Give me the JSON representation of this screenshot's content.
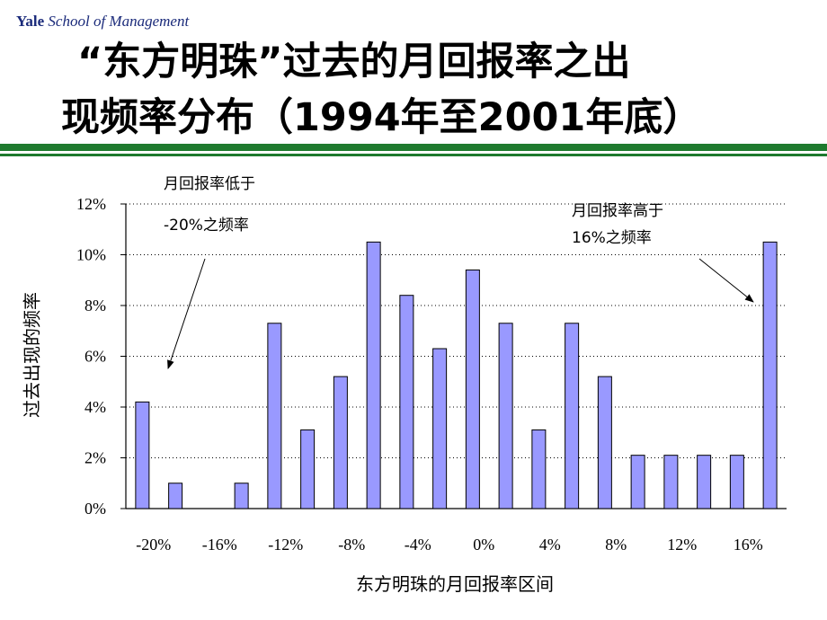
{
  "header": {
    "yale": "Yale",
    "school": "School of Management"
  },
  "title": {
    "line1": "“东方明珠”过去的月回报率之出",
    "line2": "现频率分布（1994年至2001年底）"
  },
  "annotations": {
    "low_line1": "月回报率低于",
    "low_line2": "-20%之频率",
    "high_line1": "月回报率高于",
    "high_line2": "16%之频率"
  },
  "colors": {
    "bar_fill": "#9999ff",
    "bar_stroke": "#000000",
    "rule": "#1e7a2e"
  },
  "chart_data": {
    "type": "bar",
    "title": "",
    "xlabel": "东方明珠的月回报率区间",
    "ylabel": "过去出现的频率",
    "ylim": [
      0,
      12
    ],
    "y_ticks": [
      "0%",
      "2%",
      "4%",
      "6%",
      "8%",
      "10%",
      "12%"
    ],
    "x_tick_labels": [
      "-20%",
      "-16%",
      "-12%",
      "-8%",
      "-4%",
      "0%",
      "4%",
      "8%",
      "12%",
      "16%"
    ],
    "values": [
      4.2,
      1.0,
      0.0,
      1.0,
      7.3,
      3.1,
      5.2,
      10.5,
      8.4,
      6.3,
      9.4,
      7.3,
      3.1,
      7.3,
      5.2,
      2.1,
      2.1,
      2.1,
      2.1,
      10.5
    ],
    "grid": "horizontal dotted"
  }
}
